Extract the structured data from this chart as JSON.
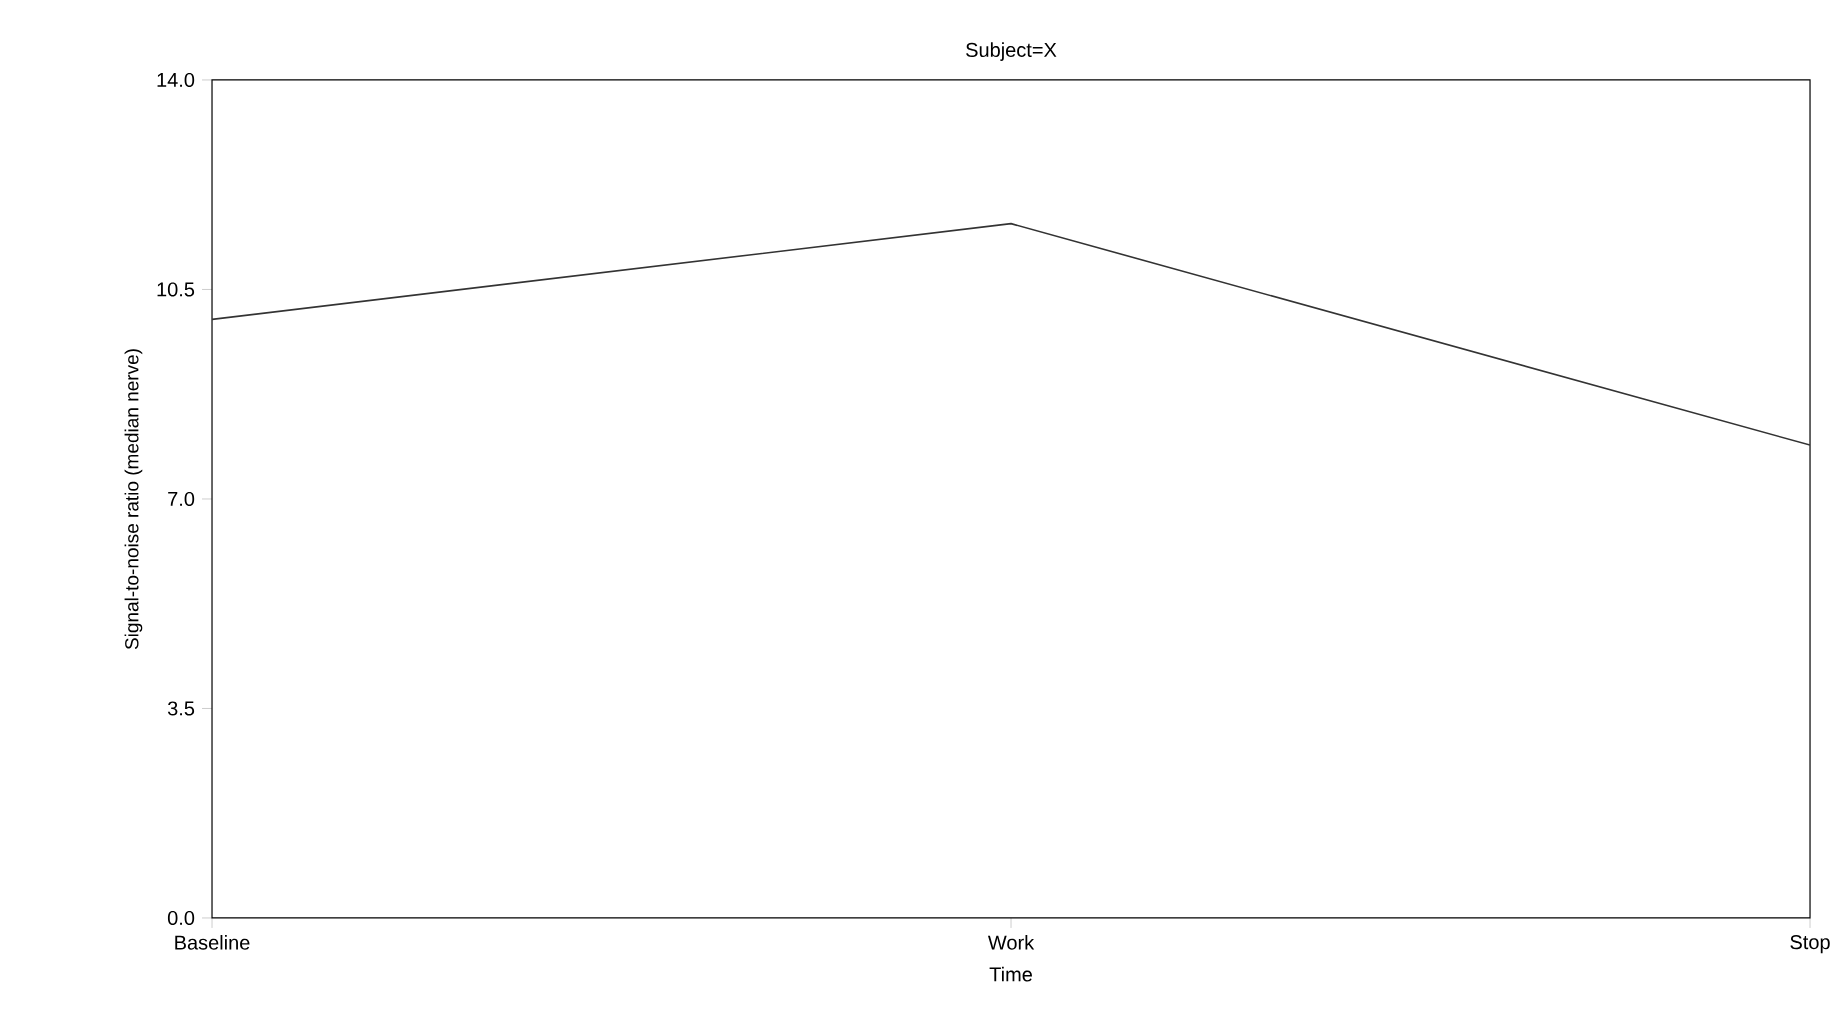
{
  "chart_data": {
    "type": "line",
    "title": "Subject=X",
    "xlabel": "Time",
    "ylabel": "Signal-to-noise ratio (median nerve)",
    "categories": [
      "Baseline",
      "Work",
      "Stop"
    ],
    "series": [
      {
        "color": "#333333",
        "values": [
          10.0,
          11.6,
          7.9
        ]
      }
    ],
    "ylim": [
      0,
      14
    ],
    "yticks": [
      {
        "value": 0,
        "label": "0.0"
      },
      {
        "value": 3.5,
        "label": "3.5"
      },
      {
        "value": 7,
        "label": "7.0"
      },
      {
        "value": 10.5,
        "label": "10.5"
      },
      {
        "value": 14,
        "label": "14.0"
      }
    ],
    "grid": false,
    "marker": "none",
    "line_style": "solid"
  }
}
